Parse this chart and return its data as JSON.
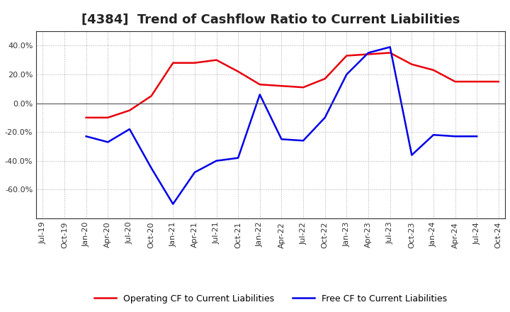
{
  "title": "[4384]  Trend of Cashflow Ratio to Current Liabilities",
  "x_labels": [
    "Jul-19",
    "Oct-19",
    "Jan-20",
    "Apr-20",
    "Jul-20",
    "Oct-20",
    "Jan-21",
    "Apr-21",
    "Jul-21",
    "Oct-21",
    "Jan-22",
    "Apr-22",
    "Jul-22",
    "Oct-22",
    "Jan-23",
    "Apr-23",
    "Jul-23",
    "Oct-23",
    "Jan-24",
    "Apr-24",
    "Jul-24",
    "Oct-24"
  ],
  "operating_cf": [
    null,
    null,
    -0.1,
    -0.1,
    -0.05,
    0.05,
    0.28,
    0.28,
    0.3,
    0.22,
    0.13,
    0.12,
    0.11,
    0.17,
    0.33,
    0.34,
    0.35,
    0.27,
    0.23,
    0.15,
    0.15,
    0.15
  ],
  "free_cf": [
    null,
    null,
    -0.23,
    -0.27,
    -0.18,
    -0.45,
    -0.7,
    -0.48,
    -0.4,
    -0.38,
    0.06,
    -0.25,
    -0.26,
    -0.1,
    0.2,
    0.35,
    0.39,
    -0.36,
    -0.22,
    -0.23,
    -0.23,
    null
  ],
  "operating_color": "#e8000a",
  "free_color": "#0000e8",
  "fig_background": "#ffffff",
  "plot_background": "#ffffff",
  "grid_color": "#aaaaaa",
  "zero_line_color": "#555555",
  "ylim": [
    -0.8,
    0.5
  ],
  "yticks": [
    -0.6,
    -0.4,
    -0.2,
    0.0,
    0.2,
    0.4
  ],
  "legend_op": "Operating CF to Current Liabilities",
  "legend_free": "Free CF to Current Liabilities",
  "title_fontsize": 13,
  "tick_fontsize": 8,
  "legend_fontsize": 9
}
